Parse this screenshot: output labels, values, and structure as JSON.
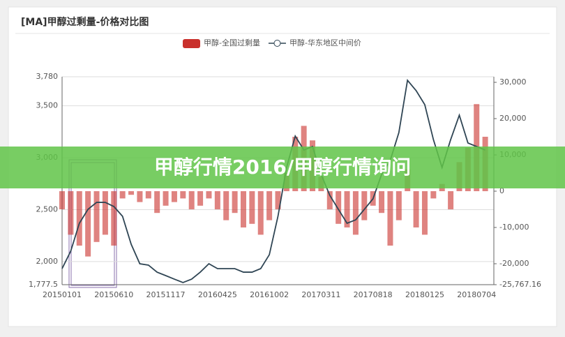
{
  "chart_data": {
    "type": "bar-line",
    "title": "[MA]甲醇过剩量-价格对比图",
    "categories": [
      "20150101",
      null,
      null,
      null,
      null,
      null,
      "20150610",
      null,
      null,
      null,
      null,
      null,
      "20151117",
      null,
      null,
      null,
      null,
      null,
      "20160425",
      null,
      null,
      null,
      null,
      null,
      "20161002",
      null,
      null,
      null,
      null,
      null,
      "20170311",
      null,
      null,
      null,
      null,
      null,
      "20170818",
      null,
      null,
      null,
      null,
      null,
      "20180125",
      null,
      null,
      null,
      null,
      null,
      "20180704",
      null
    ],
    "series": [
      {
        "name": "甲醇-全国过剩量",
        "type": "bar",
        "axis": "y2",
        "color": "#c9302c",
        "values": [
          -5000,
          -12000,
          -15000,
          -18000,
          -14000,
          -12000,
          -15000,
          -2000,
          -1000,
          -3000,
          -2000,
          -6000,
          -4000,
          -3000,
          -2000,
          -5000,
          -4000,
          -2000,
          -5000,
          -8000,
          -6000,
          -10000,
          -9000,
          -12000,
          -8000,
          -5000,
          5000,
          15000,
          18000,
          14000,
          4000,
          -5000,
          -9000,
          -10000,
          -12000,
          -8000,
          -4000,
          -6000,
          -15000,
          -8000,
          6000,
          -10000,
          -12000,
          -2000,
          2000,
          -5000,
          8000,
          12000,
          24000,
          15000
        ]
      },
      {
        "name": "甲醇-华东地区中间价",
        "type": "line",
        "color": "#2f4554",
        "values": [
          1932,
          2100,
          2369,
          2503,
          2570,
          2570,
          2530,
          2436,
          2167,
          1979,
          1966,
          1898,
          1865,
          1831,
          1798,
          1831,
          1898,
          1979,
          1932,
          1932,
          1932,
          1898,
          1898,
          1932,
          2066,
          2436,
          2906,
          3209,
          3074,
          3108,
          2839,
          2638,
          2503,
          2369,
          2402,
          2503,
          2604,
          2839,
          2974,
          3242,
          3746,
          3646,
          3511,
          3175,
          2906,
          3175,
          3410,
          3142,
          3108,
          3074
        ]
      }
    ],
    "ylim": [
      1777.5,
      3780
    ],
    "yticks": [
      {
        "value": 1777.5,
        "label": "1,777.5"
      },
      {
        "value": 2000,
        "label": "2,000"
      },
      {
        "value": 2500,
        "label": "2,500"
      },
      {
        "value": 3000,
        "label": "3,000"
      },
      {
        "value": 3500,
        "label": "3,500"
      },
      {
        "value": 3780,
        "label": "3,780"
      }
    ],
    "y2lim": [
      -25767.16,
      31538
    ],
    "y2ticks": [
      {
        "value": -25767.16,
        "label": "-25,767.16"
      },
      {
        "value": -20000,
        "label": "-20,000"
      },
      {
        "value": -10000,
        "label": "-10,000"
      },
      0,
      {
        "value": 10000,
        "label": "10,000"
      },
      {
        "value": 20000,
        "label": "20,000"
      },
      {
        "value": 30000,
        "label": "30,000"
      }
    ],
    "grid": true,
    "legend": "top"
  },
  "banner": "甲醇行情2016/甲醇行情询问"
}
